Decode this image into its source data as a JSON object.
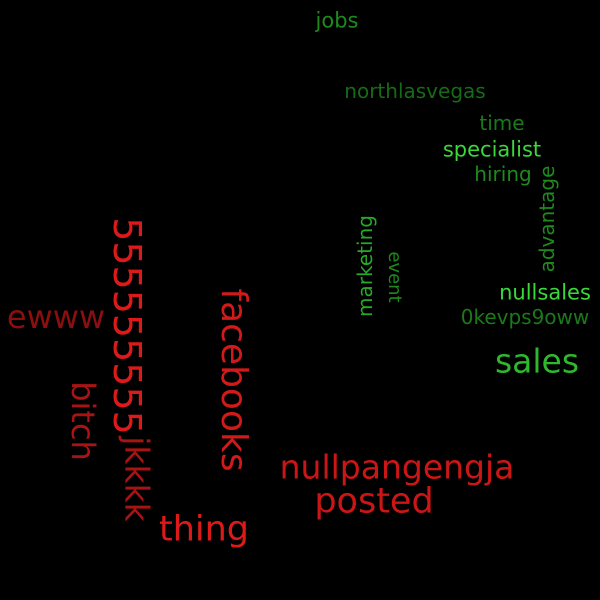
{
  "cloud": {
    "background": "#000000",
    "words": {
      "jobs": {
        "text": "jobs",
        "color": "#1e8a1e"
      },
      "northlasvegas": {
        "text": "northlasvegas",
        "color": "#166b16"
      },
      "time": {
        "text": "time",
        "color": "#1a7a1a"
      },
      "specialist": {
        "text": "specialist",
        "color": "#3ad83a"
      },
      "hiring": {
        "text": "hiring",
        "color": "#1e8a1e"
      },
      "advantage": {
        "text": "advantage",
        "color": "#1e8a1e"
      },
      "marketing": {
        "text": "marketing",
        "color": "#28a828"
      },
      "event": {
        "text": "event",
        "color": "#1e8a1e"
      },
      "nullsales": {
        "text": "nullsales",
        "color": "#3ad83a"
      },
      "okevps9oww": {
        "text": "0kevps9oww",
        "color": "#1a7a1a"
      },
      "sales": {
        "text": "sales",
        "color": "#2eb82e"
      },
      "fives": {
        "text": "555555555",
        "color": "#dd1a1a"
      },
      "ewww": {
        "text": "ewww",
        "color": "#8b0f0f"
      },
      "bitch": {
        "text": "bitch",
        "color": "#a81414"
      },
      "facebooks": {
        "text": "facebooks",
        "color": "#d21a1a"
      },
      "jkkkk": {
        "text": "jkkkk",
        "color": "#a81414"
      },
      "nullpangengja": {
        "text": "nullpangengja",
        "color": "#cc1616"
      },
      "posted": {
        "text": "posted",
        "color": "#cc1616"
      },
      "thing": {
        "text": "thing",
        "color": "#dd1a1a"
      }
    }
  }
}
